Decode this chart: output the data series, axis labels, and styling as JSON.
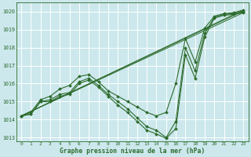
{
  "xlabel": "Graphe pression niveau de la mer (hPa)",
  "bg_color": "#cce8ec",
  "grid_color": "#ffffff",
  "line_color": "#2d6b2d",
  "xlim": [
    -0.5,
    23.5
  ],
  "ylim": [
    1012.8,
    1020.5
  ],
  "yticks": [
    1013,
    1014,
    1015,
    1016,
    1017,
    1018,
    1019,
    1020
  ],
  "xticks": [
    0,
    1,
    2,
    3,
    4,
    5,
    6,
    7,
    8,
    9,
    10,
    11,
    12,
    13,
    14,
    15,
    16,
    17,
    18,
    19,
    20,
    21,
    22,
    23
  ],
  "series": {
    "main": {
      "x": [
        0,
        1,
        2,
        3,
        4,
        5,
        6,
        7,
        8,
        9,
        10,
        11,
        12,
        13,
        14,
        15,
        16,
        17,
        18,
        19,
        20,
        21,
        22,
        23
      ],
      "y": [
        1014.2,
        1014.3,
        1015.0,
        1015.1,
        1015.4,
        1015.5,
        1016.1,
        1016.3,
        1015.9,
        1015.4,
        1015.0,
        1014.6,
        1014.1,
        1013.6,
        1013.4,
        1013.0,
        1013.9,
        1018.0,
        1016.7,
        1018.8,
        1019.7,
        1019.85,
        1019.9,
        1020.0
      ]
    },
    "upper": {
      "x": [
        0,
        1,
        2,
        3,
        4,
        5,
        6,
        7,
        8,
        9,
        10,
        11,
        12,
        13,
        14,
        15,
        16,
        17,
        18,
        19,
        20,
        21,
        22,
        23
      ],
      "y": [
        1014.2,
        1014.4,
        1015.1,
        1015.3,
        1015.7,
        1015.9,
        1016.4,
        1016.5,
        1016.1,
        1015.6,
        1015.3,
        1015.0,
        1014.7,
        1014.4,
        1014.2,
        1014.4,
        1016.0,
        1018.5,
        1017.2,
        1019.1,
        1019.75,
        1019.9,
        1019.95,
        1020.1
      ]
    },
    "lower": {
      "x": [
        0,
        1,
        2,
        3,
        4,
        5,
        6,
        7,
        8,
        9,
        10,
        11,
        12,
        13,
        14,
        15,
        16,
        17,
        18,
        19,
        20,
        21,
        22,
        23
      ],
      "y": [
        1014.2,
        1014.3,
        1015.0,
        1015.0,
        1015.3,
        1015.4,
        1016.0,
        1016.2,
        1015.8,
        1015.3,
        1014.8,
        1014.4,
        1013.9,
        1013.4,
        1013.2,
        1012.95,
        1013.5,
        1017.6,
        1016.3,
        1018.6,
        1019.65,
        1019.8,
        1019.85,
        1019.95
      ]
    }
  },
  "trend_lines": [
    {
      "x0": 0,
      "y0": 1014.2,
      "x1": 23,
      "y1": 1020.05
    },
    {
      "x0": 0,
      "y0": 1014.2,
      "x1": 23,
      "y1": 1020.1
    },
    {
      "x0": 0,
      "y0": 1014.2,
      "x1": 23,
      "y1": 1019.95
    }
  ]
}
